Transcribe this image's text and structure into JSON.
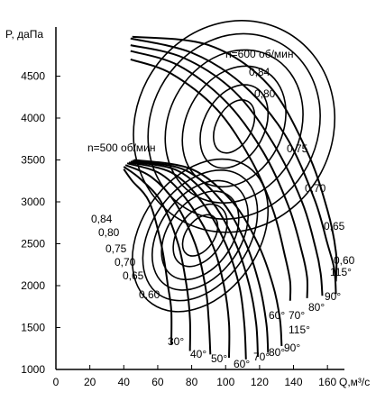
{
  "chart_data": {
    "type": "line",
    "xlabel": "Q,м³/с",
    "ylabel": "P, даПа",
    "xlim": [
      0,
      170
    ],
    "ylim": [
      1000,
      5000
    ],
    "x_ticks": [
      "0",
      "20",
      "40",
      "60",
      "80",
      "100",
      "120",
      "140",
      "160"
    ],
    "y_ticks": [
      "1000",
      "1500",
      "2000",
      "2500",
      "3000",
      "3500",
      "4000",
      "4500"
    ],
    "x_tick_values": [
      0,
      20,
      40,
      60,
      80,
      100,
      120,
      140,
      160
    ],
    "y_tick_values": [
      1000,
      1500,
      2000,
      2500,
      3000,
      3500,
      4000,
      4500
    ],
    "grid": false,
    "groups": [
      {
        "name": "n=600 об/мин",
        "angle_curves": [
          {
            "label": "90°",
            "points": [
              [
                44,
                4950
              ],
              [
                80,
                4780
              ],
              [
                110,
                4400
              ],
              [
                135,
                3800
              ],
              [
                152,
                3050
              ],
              [
                160,
                2500
              ],
              [
                164,
                2200
              ],
              [
                165,
                1900
              ]
            ]
          },
          {
            "label": "80°",
            "points": [
              [
                44,
                4870
              ],
              [
                75,
                4720
              ],
              [
                105,
                4320
              ],
              [
                128,
                3700
              ],
              [
                145,
                3000
              ],
              [
                153,
                2450
              ],
              [
                156,
                2150
              ],
              [
                157,
                1880
              ]
            ]
          },
          {
            "label": "70°",
            "points": [
              [
                44,
                4800
              ],
              [
                72,
                4630
              ],
              [
                100,
                4200
              ],
              [
                122,
                3600
              ],
              [
                137,
                2950
              ],
              [
                145,
                2400
              ],
              [
                148,
                2100
              ],
              [
                148,
                1850
              ]
            ]
          },
          {
            "label": "60°",
            "points": [
              [
                44,
                4700
              ],
              [
                68,
                4530
              ],
              [
                95,
                4100
              ],
              [
                115,
                3500
              ],
              [
                128,
                2900
              ],
              [
                135,
                2350
              ],
              [
                138,
                2050
              ],
              [
                138,
                1820
              ]
            ]
          },
          {
            "label": "115°",
            "points": [
              [
                45,
                4970
              ],
              [
                90,
                4870
              ],
              [
                125,
                4400
              ],
              [
                148,
                3600
              ],
              [
                160,
                2900
              ],
              [
                165,
                2400
              ],
              [
                165,
                2050
              ]
            ]
          }
        ]
      },
      {
        "name": "n=500 об/мин",
        "angle_curves": [
          {
            "label": "30°",
            "points": [
              [
                40,
                3390
              ],
              [
                45,
                3250
              ],
              [
                55,
                3000
              ],
              [
                62,
                2500
              ],
              [
                66,
                2000
              ],
              [
                68,
                1700
              ],
              [
                68,
                1300
              ]
            ]
          },
          {
            "label": "40°",
            "points": [
              [
                40,
                3420
              ],
              [
                50,
                3270
              ],
              [
                62,
                3000
              ],
              [
                72,
                2500
              ],
              [
                77,
                2000
              ],
              [
                79,
                1600
              ],
              [
                79,
                1220
              ]
            ]
          },
          {
            "label": "50°",
            "points": [
              [
                41,
                3440
              ],
              [
                56,
                3300
              ],
              [
                70,
                3000
              ],
              [
                82,
                2500
              ],
              [
                88,
                2000
              ],
              [
                90,
                1600
              ],
              [
                91,
                1180
              ]
            ]
          },
          {
            "label": "60°",
            "points": [
              [
                42,
                3460
              ],
              [
                62,
                3330
              ],
              [
                78,
                3000
              ],
              [
                92,
                2500
              ],
              [
                99,
                2000
              ],
              [
                102,
                1550
              ],
              [
                102,
                1140
              ]
            ]
          },
          {
            "label": "70°",
            "points": [
              [
                43,
                3470
              ],
              [
                68,
                3350
              ],
              [
                86,
                3000
              ],
              [
                100,
                2500
              ],
              [
                108,
                2000
              ],
              [
                111,
                1550
              ],
              [
                112,
                1120
              ]
            ]
          },
          {
            "label": "80°",
            "points": [
              [
                44,
                3480
              ],
              [
                72,
                3370
              ],
              [
                92,
                3000
              ],
              [
                106,
                2500
              ],
              [
                114,
                2000
              ],
              [
                118,
                1550
              ],
              [
                119,
                1150
              ]
            ]
          },
          {
            "label": "90°",
            "points": [
              [
                45,
                3490
              ],
              [
                76,
                3380
              ],
              [
                98,
                3000
              ],
              [
                112,
                2500
              ],
              [
                120,
                2000
              ],
              [
                124,
                1550
              ],
              [
                125,
                1200
              ]
            ]
          },
          {
            "label": "115°",
            "points": [
              [
                46,
                3500
              ],
              [
                80,
                3390
              ],
              [
                104,
                3000
              ],
              [
                119,
                2500
              ],
              [
                128,
                2000
              ],
              [
                132,
                1600
              ],
              [
                133,
                1280
              ]
            ]
          }
        ]
      }
    ],
    "efficiency_labels": {
      "600": [
        "0,84",
        "0,80",
        "0,75",
        "0,70",
        "0,65",
        "0,60"
      ],
      "500": [
        "0,84",
        "0,80",
        "0,75",
        "0,70",
        "0,65",
        "0,60"
      ]
    },
    "angle_labels": {
      "600": [
        "115°",
        "90°",
        "80°",
        "70°",
        "60°"
      ],
      "500": [
        "30°",
        "40°",
        "50°",
        "60°",
        "70°",
        "80°",
        "90°",
        "115°"
      ]
    }
  }
}
